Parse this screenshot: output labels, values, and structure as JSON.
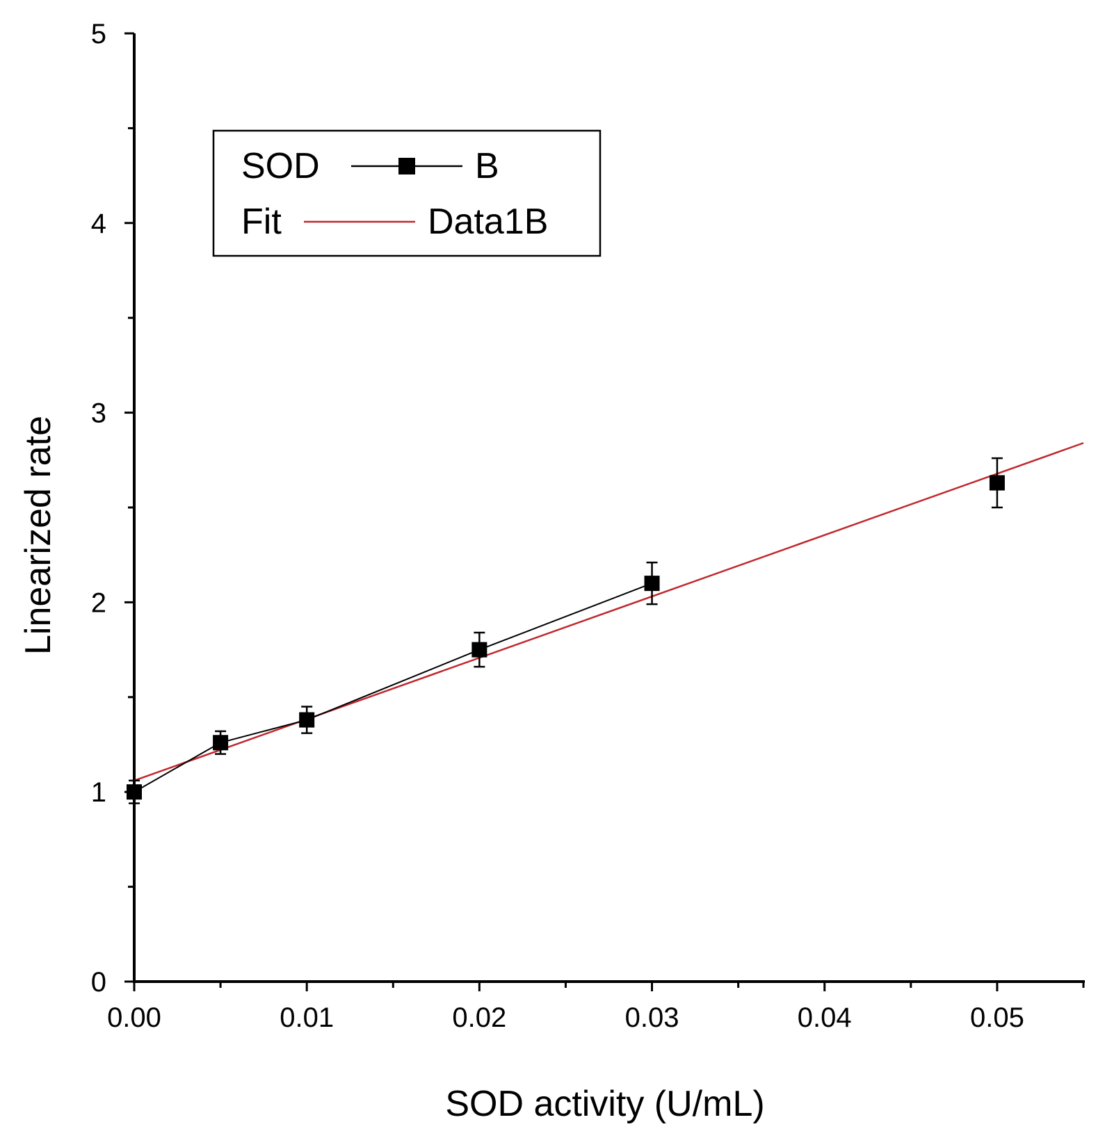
{
  "chart_data": {
    "type": "scatter",
    "title": "",
    "xlabel": "SOD activity (U/mL)",
    "ylabel": "Linearized rate",
    "xlim": [
      0,
      0.055
    ],
    "ylim": [
      0,
      5
    ],
    "x_ticks": [
      {
        "value": 0.0,
        "label": "0.00"
      },
      {
        "value": 0.01,
        "label": "0.01"
      },
      {
        "value": 0.02,
        "label": "0.02"
      },
      {
        "value": 0.03,
        "label": "0.03"
      },
      {
        "value": 0.04,
        "label": "0.04"
      },
      {
        "value": 0.05,
        "label": "0.05"
      }
    ],
    "x_minor_ticks": [
      0.005,
      0.015,
      0.025,
      0.035,
      0.045,
      0.055
    ],
    "y_ticks": [
      {
        "value": 0,
        "label": "0"
      },
      {
        "value": 1,
        "label": "1"
      },
      {
        "value": 2,
        "label": "2"
      },
      {
        "value": 3,
        "label": "3"
      },
      {
        "value": 4,
        "label": "4"
      },
      {
        "value": 5,
        "label": "5"
      }
    ],
    "y_minor_ticks": [
      0.5,
      1.5,
      2.5,
      3.5,
      4.5
    ],
    "grid": false,
    "legend_position": "top-left",
    "series": [
      {
        "name": "B",
        "legend_label": "SOD",
        "legend_suffix": "B",
        "color": "#000000",
        "marker": "square",
        "line": true,
        "points": [
          {
            "x": 0.0,
            "y": 1.0,
            "err": 0.06
          },
          {
            "x": 0.005,
            "y": 1.26,
            "err": 0.06
          },
          {
            "x": 0.01,
            "y": 1.38,
            "err": 0.07
          },
          {
            "x": 0.02,
            "y": 1.75,
            "err": 0.09
          },
          {
            "x": 0.03,
            "y": 2.1,
            "err": 0.11
          },
          {
            "x": 0.05,
            "y": 2.63,
            "err": 0.13
          }
        ],
        "connect_until_x": 0.03
      },
      {
        "name": "Data1B",
        "legend_label": "Fit",
        "legend_suffix": "Data1B",
        "color": "#c0282d",
        "marker": "none",
        "line": true,
        "points": [
          {
            "x": 0.0,
            "y": 1.06
          },
          {
            "x": 0.055,
            "y": 2.84
          }
        ]
      }
    ]
  }
}
